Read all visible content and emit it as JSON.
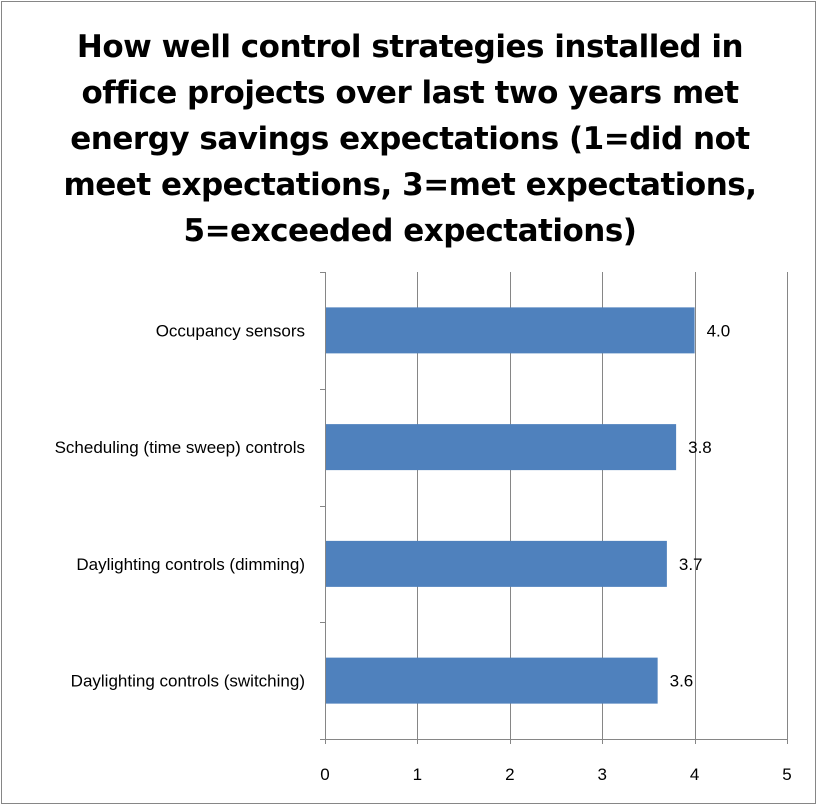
{
  "chart_data": {
    "type": "bar",
    "orientation": "horizontal",
    "title": "How well control strategies installed in office projects over last two years met energy savings expectations (1=did not meet expectations, 3=met expectations, 5=exceeded expectations)",
    "title_lines": [
      "How well control strategies installed in",
      "office projects over last two years met",
      "energy savings expectations (1=did not",
      "meet expectations, 3=met expectations,",
      "5=exceeded expectations)"
    ],
    "categories": [
      "Occupancy sensors",
      "Scheduling (time sweep)  controls",
      "Daylighting controls (dimming)",
      "Daylighting controls (switching)"
    ],
    "values": [
      4.0,
      3.8,
      3.7,
      3.6
    ],
    "data_labels": [
      "4.0",
      "3.8",
      "3.7",
      "3.6"
    ],
    "xlim": [
      0,
      5
    ],
    "xticks": [
      "0",
      "1",
      "2",
      "3",
      "4",
      "5"
    ],
    "xlabel": "",
    "ylabel": "",
    "grid": "vertical",
    "legend": "none",
    "bar_color": "#4f81bd",
    "gridline_color": "#868686"
  }
}
